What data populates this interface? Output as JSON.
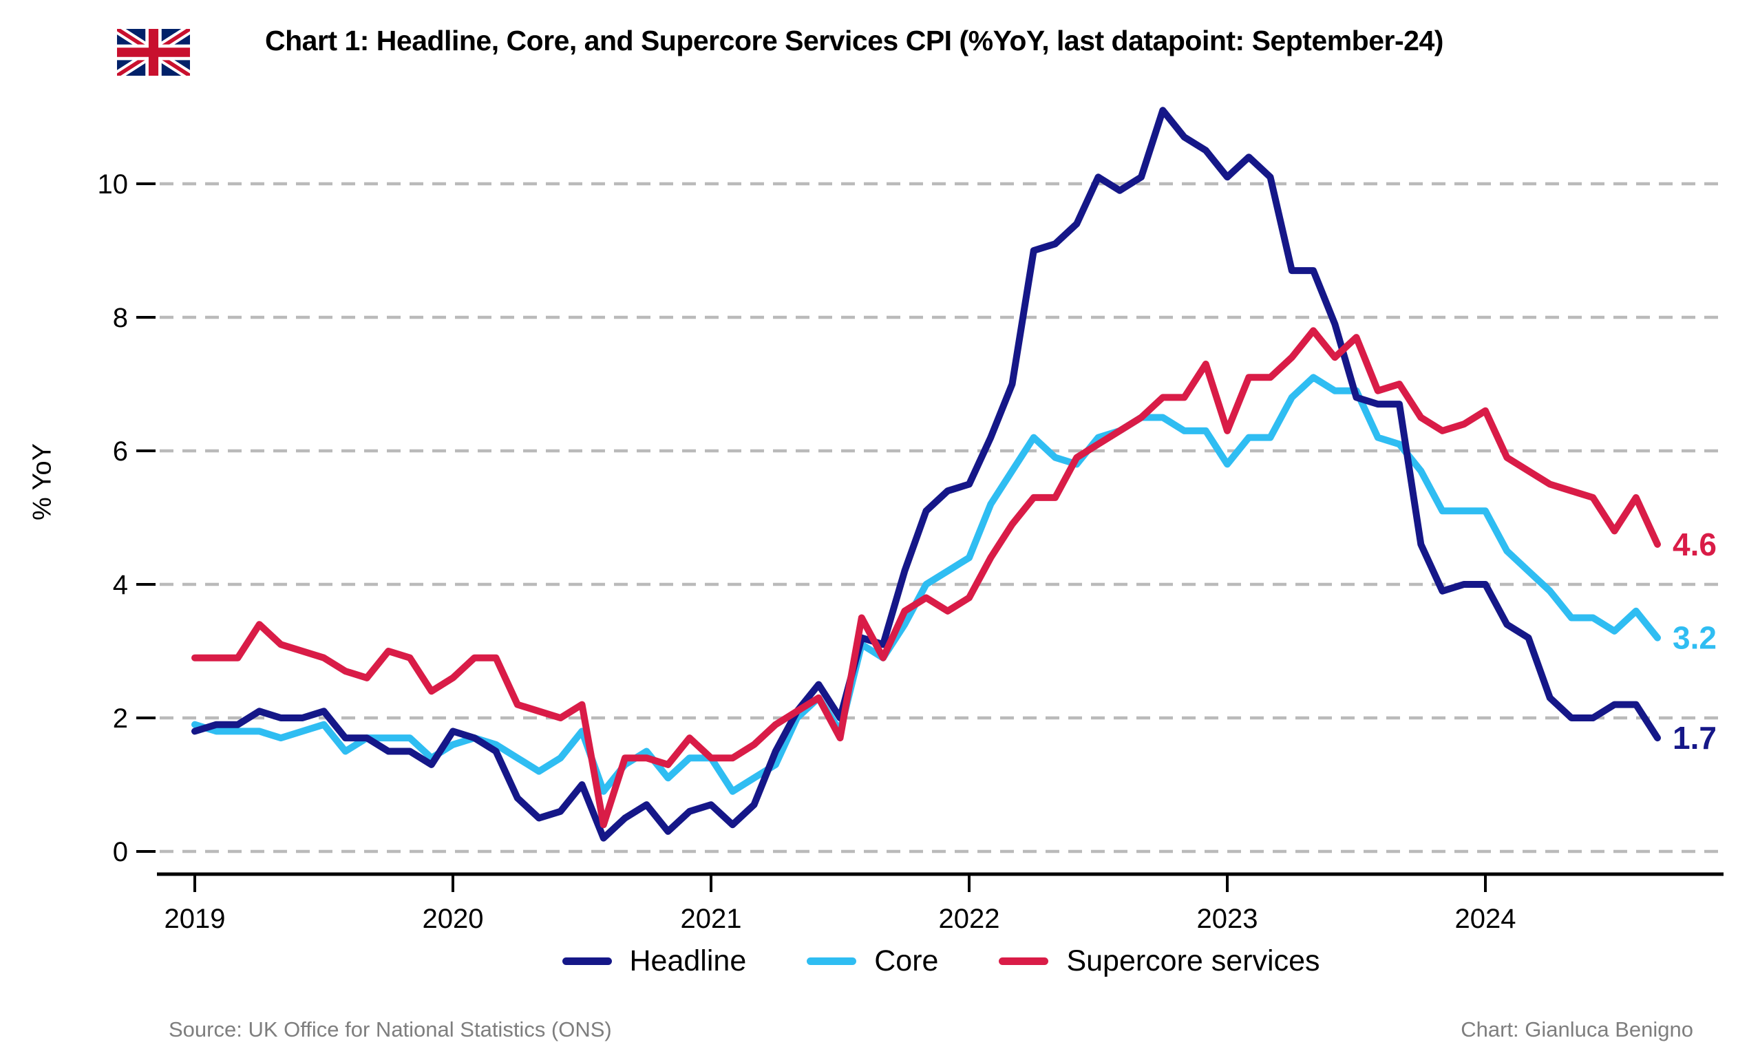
{
  "title": "Chart 1: Headline, Core, and Supercore Services CPI (%YoY, last datapoint: September-24)",
  "y_axis_title": "% YoY",
  "flag": {
    "name": "uk-flag",
    "blue": "#012169",
    "red": "#C8102E",
    "white": "#FFFFFF"
  },
  "colors": {
    "grid": "#bababa",
    "axis": "#000000",
    "footer_text": "#7e7e7e",
    "background": "#ffffff"
  },
  "footer": {
    "source": "Source: UK Office for National Statistics (ONS)",
    "credit": "Chart: Gianluca Benigno"
  },
  "chart_data": {
    "type": "line",
    "title": "Chart 1: Headline, Core, and Supercore Services CPI (%YoY, last datapoint: September-24)",
    "xlabel": "",
    "ylabel": "% YoY",
    "frequency": "monthly",
    "x_start": "2019-01",
    "x_end": "2024-09",
    "x_tick_labels": [
      "2019",
      "2020",
      "2021",
      "2022",
      "2023",
      "2024"
    ],
    "y_ticks": [
      0,
      2,
      4,
      6,
      8,
      10
    ],
    "ylim": [
      -0.3,
      11.7
    ],
    "grid": "horizontal-dashed",
    "legend_position": "bottom-center",
    "series": [
      {
        "name": "Headline",
        "color": "#151788",
        "z": 2,
        "end_label": "1.7",
        "values": [
          1.8,
          1.9,
          1.9,
          2.1,
          2.0,
          2.0,
          2.1,
          1.7,
          1.7,
          1.5,
          1.5,
          1.3,
          1.8,
          1.7,
          1.5,
          0.8,
          0.5,
          0.6,
          1.0,
          0.2,
          0.5,
          0.7,
          0.3,
          0.6,
          0.7,
          0.4,
          0.7,
          1.5,
          2.1,
          2.5,
          2.0,
          3.2,
          3.1,
          4.2,
          5.1,
          5.4,
          5.5,
          6.2,
          7.0,
          9.0,
          9.1,
          9.4,
          10.1,
          9.9,
          10.1,
          11.1,
          10.7,
          10.5,
          10.1,
          10.4,
          10.1,
          8.7,
          8.7,
          7.9,
          6.8,
          6.7,
          6.7,
          4.6,
          3.9,
          4.0,
          4.0,
          3.4,
          3.2,
          2.3,
          2.0,
          2.0,
          2.2,
          2.2,
          1.7
        ]
      },
      {
        "name": "Core",
        "color": "#2fbdf2",
        "z": 1,
        "end_label": "3.2",
        "values": [
          1.9,
          1.8,
          1.8,
          1.8,
          1.7,
          1.8,
          1.9,
          1.5,
          1.7,
          1.7,
          1.7,
          1.4,
          1.6,
          1.7,
          1.6,
          1.4,
          1.2,
          1.4,
          1.8,
          0.9,
          1.3,
          1.5,
          1.1,
          1.4,
          1.4,
          0.9,
          1.1,
          1.3,
          2.0,
          2.3,
          1.8,
          3.1,
          2.9,
          3.4,
          4.0,
          4.2,
          4.4,
          5.2,
          5.7,
          6.2,
          5.9,
          5.8,
          6.2,
          6.3,
          6.5,
          6.5,
          6.3,
          6.3,
          5.8,
          6.2,
          6.2,
          6.8,
          7.1,
          6.9,
          6.9,
          6.2,
          6.1,
          5.7,
          5.1,
          5.1,
          5.1,
          4.5,
          4.2,
          3.9,
          3.5,
          3.5,
          3.3,
          3.6,
          3.2
        ]
      },
      {
        "name": "Supercore services",
        "color": "#d91c47",
        "z": 3,
        "end_label": "4.6",
        "values": [
          2.9,
          2.9,
          2.9,
          3.4,
          3.1,
          3.0,
          2.9,
          2.7,
          2.6,
          3.0,
          2.9,
          2.4,
          2.6,
          2.9,
          2.9,
          2.2,
          2.1,
          2.0,
          2.2,
          0.4,
          1.4,
          1.4,
          1.3,
          1.7,
          1.4,
          1.4,
          1.6,
          1.9,
          2.1,
          2.3,
          1.7,
          3.5,
          2.9,
          3.6,
          3.8,
          3.6,
          3.8,
          4.4,
          4.9,
          5.3,
          5.3,
          5.9,
          6.1,
          6.3,
          6.5,
          6.8,
          6.8,
          7.3,
          6.3,
          7.1,
          7.1,
          7.4,
          7.8,
          7.4,
          7.7,
          6.9,
          7.0,
          6.5,
          6.3,
          6.4,
          6.6,
          5.9,
          5.7,
          5.5,
          5.4,
          5.3,
          4.8,
          5.3,
          4.6
        ]
      }
    ]
  }
}
